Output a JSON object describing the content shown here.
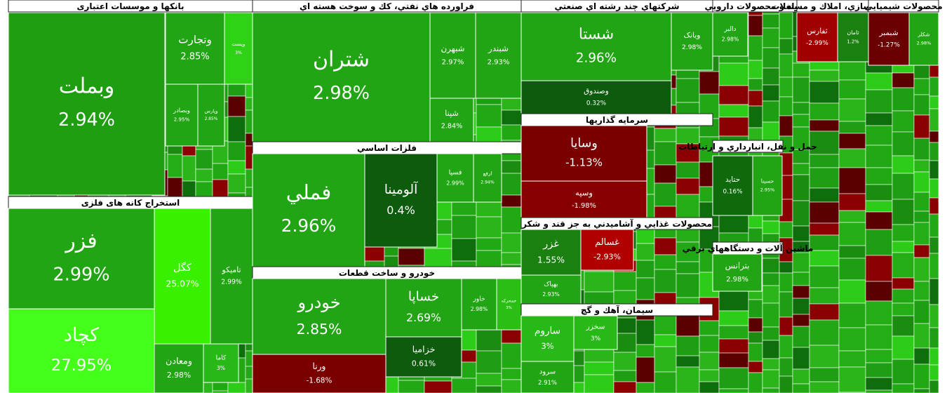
{
  "chart_data": {
    "type": "treemap",
    "series": [
      {
        "name": "بانکها و موسسات اعتباری",
        "categories": [
          "وبملت",
          "وتجارت",
          "وپست",
          "وبصادر",
          "وپارس"
        ],
        "values": [
          2.94,
          2.85,
          3,
          2.95,
          2.85
        ],
        "value_labels": [
          "2.94%",
          "2.85%",
          "3%",
          "2.95%",
          "2.85%"
        ],
        "colors": [
          "#1f9e12",
          "#22a514",
          "#2fd316",
          "#22a514",
          "#22a514"
        ]
      },
      {
        "name": "استخراج کانه های فلزی",
        "categories": [
          "فزر",
          "کچاد",
          "کگل",
          "تامیکو",
          "ومعادن",
          "کاما"
        ],
        "values": [
          2.99,
          27.95,
          25.07,
          2.99,
          2.98,
          3
        ],
        "value_labels": [
          "2.99%",
          "27.95%",
          "25.07%",
          "2.99%",
          "2.98%",
          "3%"
        ],
        "colors": [
          "#22a514",
          "#44ff1a",
          "#39f000",
          "#22a514",
          "#22a514",
          "#28b818"
        ]
      },
      {
        "name": "فراورده هاي نفتي، كك و سوخت هسته اي",
        "categories": [
          "شتران",
          "شبهرن",
          "شبندر",
          "شپنا"
        ],
        "values": [
          2.98,
          2.97,
          2.93,
          2.84
        ],
        "value_labels": [
          "2.98%",
          "2.97%",
          "2.93%",
          "2.84%"
        ],
        "colors": [
          "#22a514",
          "#22a514",
          "#22a514",
          "#22a514"
        ]
      },
      {
        "name": "فلزات اساسي",
        "categories": [
          "فملي",
          "آلومينا",
          "فسپا",
          "ارفع"
        ],
        "values": [
          2.96,
          0.4,
          2.99,
          2.94
        ],
        "value_labels": [
          "2.96%",
          "0.4%",
          "2.99%",
          "2.94%"
        ],
        "colors": [
          "#22a514",
          "#0d5c0d",
          "#22a514",
          "#22a514"
        ]
      },
      {
        "name": "خودرو و ساخت قطعات",
        "categories": [
          "خودرو",
          "ورنا",
          "خساپا",
          "خزاميا",
          "خاور",
          "خمحرکه"
        ],
        "values": [
          2.85,
          -1.68,
          2.69,
          0.61,
          2.98,
          3
        ],
        "value_labels": [
          "2.85%",
          "-1.68%",
          "2.69%",
          "0.61%",
          "2.98%",
          "3%"
        ],
        "colors": [
          "#22a514",
          "#7a0000",
          "#22a514",
          "#0d5c0d",
          "#22a514",
          "#2bbf16"
        ]
      },
      {
        "name": "شرکتهاي چند رشته اي صنعتي",
        "categories": [
          "شستا",
          "وصندوق",
          "وبانک"
        ],
        "values": [
          2.96,
          0.32,
          2.98
        ],
        "value_labels": [
          "2.96%",
          "0.32%",
          "2.98%"
        ],
        "colors": [
          "#22a514",
          "#0d5c0d",
          "#22a514"
        ]
      },
      {
        "name": "سرمايه گذاريها",
        "categories": [
          "وسايا",
          "وسپه"
        ],
        "values": [
          -1.13,
          -1.98
        ],
        "value_labels": [
          "-1.13%",
          "-1.98%"
        ],
        "colors": [
          "#7a0000",
          "#860000"
        ]
      },
      {
        "name": "محصولات غذايي و آشاميدني به جز قند و شكر",
        "categories": [
          "غزر",
          "غسالم",
          "بهپاک"
        ],
        "values": [
          1.55,
          -2.93,
          2.93
        ],
        "value_labels": [
          "1.55%",
          "-2.93%",
          "2.93%"
        ],
        "colors": [
          "#1a8010",
          "#b00000",
          "#22a514"
        ]
      },
      {
        "name": "سيمان، آهك و گچ",
        "categories": [
          "ساروم",
          "سخزر",
          "سرود"
        ],
        "values": [
          3,
          3,
          2.91
        ],
        "value_labels": [
          "3%",
          "3%",
          "2.91%"
        ],
        "colors": [
          "#28b818",
          "#28b818",
          "#22a514"
        ]
      },
      {
        "name": "مواد و محصولات دارويي",
        "categories": [
          "دالبر"
        ],
        "values": [
          2.98
        ],
        "value_labels": [
          "2.98%"
        ],
        "colors": [
          "#22a514"
        ]
      },
      {
        "name": "انبوه سازي، املاك و مستغلات",
        "categories": [
          "ثفارس",
          "ثامان"
        ],
        "values": [
          -2.99,
          1.2
        ],
        "value_labels": [
          "-2.99%",
          "1.2%"
        ],
        "colors": [
          "#a00000",
          "#1a8010"
        ]
      },
      {
        "name": "محصولات شيميايي",
        "categories": [
          "شبمبر",
          "شکلر"
        ],
        "values": [
          -1.27,
          2.98
        ],
        "value_labels": [
          "-1.27%",
          "2.98%"
        ],
        "colors": [
          "#6a0000",
          "#22a514"
        ]
      },
      {
        "name": "حمل و نقل، انبارداري و ارتباطات",
        "categories": [
          "حتايد",
          "حسينا"
        ],
        "values": [
          0.16,
          2.95
        ],
        "value_labels": [
          "0.16%",
          "2.95%"
        ],
        "colors": [
          "#0f6a0c",
          "#22a514"
        ]
      },
      {
        "name": "ماشين آلات و دستگاههاي برقي",
        "categories": [
          "بترانس"
        ],
        "values": [
          2.98
        ],
        "value_labels": [
          "2.98%"
        ],
        "colors": [
          "#22a514"
        ]
      }
    ]
  }
}
